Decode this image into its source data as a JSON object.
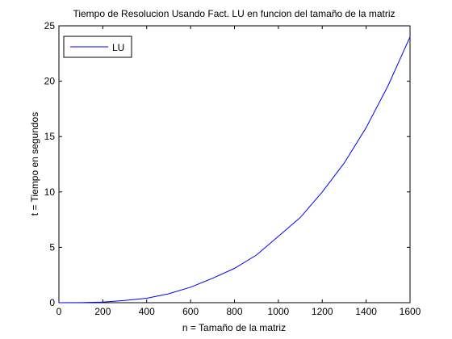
{
  "chart_data": {
    "type": "line",
    "title": "Tiempo de Resolucion Usando Fact. LU en funcion del tamaño de la matriz",
    "xlabel": "n = Tamaño de la matriz",
    "ylabel": "t = Tiempo en segundos",
    "xlim": [
      0,
      1600
    ],
    "ylim": [
      0,
      25
    ],
    "xticks": [
      0,
      200,
      400,
      600,
      800,
      1000,
      1200,
      1400,
      1600
    ],
    "yticks": [
      0,
      5,
      10,
      15,
      20,
      25
    ],
    "grid": false,
    "legend_position": "top-left",
    "series": [
      {
        "name": "LU",
        "color": "#0000ff",
        "x": [
          0,
          100,
          200,
          300,
          400,
          500,
          600,
          700,
          800,
          900,
          1000,
          1100,
          1200,
          1300,
          1400,
          1500,
          1600
        ],
        "y": [
          0.0,
          0.01,
          0.05,
          0.2,
          0.4,
          0.8,
          1.4,
          2.2,
          3.1,
          4.3,
          6.0,
          7.7,
          10.0,
          12.6,
          15.8,
          19.6,
          24.0
        ]
      }
    ]
  }
}
